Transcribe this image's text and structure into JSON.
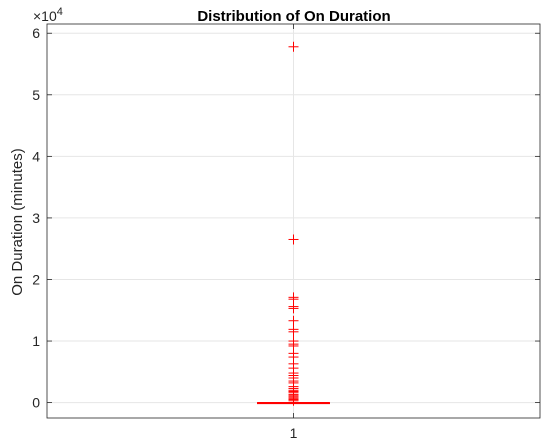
{
  "chart_data": {
    "type": "boxplot",
    "title": "Distribution of On Duration",
    "xlabel": "",
    "ylabel": "On Duration (minutes)",
    "categories": [
      "1"
    ],
    "y_exponent_label": "×10",
    "y_exponent_power": "4",
    "y_tick_labels": [
      "0",
      "1",
      "2",
      "3",
      "4",
      "5",
      "6"
    ],
    "ylim": [
      -2500,
      61500
    ],
    "grid": true,
    "box": {
      "min": 0,
      "q1": 0,
      "median": 0,
      "q3": 0,
      "whisker_low": 0,
      "whisker_high": 0
    },
    "outliers": [
      57800,
      26500,
      17100,
      16800,
      15600,
      15300,
      13300,
      11900,
      11500,
      10000,
      9500,
      9200,
      8000,
      7400,
      6300,
      5600,
      4800,
      4400,
      4000,
      3500,
      3200,
      2600,
      2300,
      2000,
      1800,
      1600,
      1300,
      1100,
      900,
      700,
      500,
      300
    ],
    "box_color": "#ff0000",
    "outlier_color": "#ff0000"
  }
}
